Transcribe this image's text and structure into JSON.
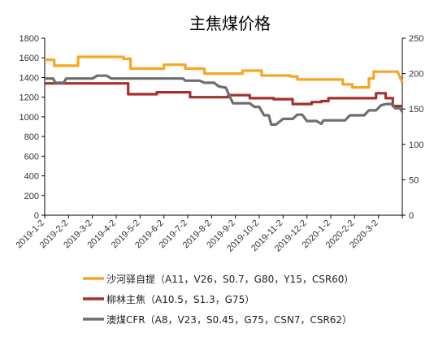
{
  "chart_data": {
    "type": "line",
    "title": "主焦煤价格",
    "x_labels": [
      "2019-1-2",
      "2019-2-2",
      "2019-3-2",
      "2019-4-2",
      "2019-5-2",
      "2019-6-2",
      "2019-7-2",
      "2019-8-2",
      "2019-9-2",
      "2019-10-2",
      "2019-11-2",
      "2019-12-2",
      "2020-1-2",
      "2020-2-2",
      "2020-3-2"
    ],
    "y_left": {
      "min": 0,
      "max": 1800,
      "step": 200,
      "ticks": [
        "0",
        "200",
        "400",
        "600",
        "800",
        "1000",
        "1200",
        "1400",
        "1600",
        "1800"
      ]
    },
    "y_right": {
      "min": 0,
      "max": 250,
      "step": 50,
      "ticks": [
        "0",
        "50",
        "100",
        "150",
        "200",
        "250"
      ]
    },
    "grid": false,
    "legend_position": "bottom",
    "series": [
      {
        "name": "沙河驿自提（A11，V26，S0.7，G80，Y15，CSR60）",
        "axis": "left",
        "color": "#F5A623",
        "points": [
          [
            0,
            1580
          ],
          [
            0.4,
            1580
          ],
          [
            0.4,
            1520
          ],
          [
            1.4,
            1520
          ],
          [
            1.4,
            1610
          ],
          [
            3.3,
            1610
          ],
          [
            3.3,
            1590
          ],
          [
            3.6,
            1590
          ],
          [
            3.6,
            1490
          ],
          [
            5.0,
            1490
          ],
          [
            5.0,
            1530
          ],
          [
            5.9,
            1530
          ],
          [
            5.9,
            1490
          ],
          [
            6.7,
            1490
          ],
          [
            6.7,
            1440
          ],
          [
            8.3,
            1440
          ],
          [
            8.3,
            1470
          ],
          [
            9.1,
            1470
          ],
          [
            9.1,
            1420
          ],
          [
            10.3,
            1420
          ],
          [
            10.3,
            1410
          ],
          [
            10.6,
            1410
          ],
          [
            10.6,
            1380
          ],
          [
            12.5,
            1380
          ],
          [
            12.5,
            1330
          ],
          [
            12.9,
            1330
          ],
          [
            12.9,
            1300
          ],
          [
            13.6,
            1300
          ],
          [
            13.6,
            1390
          ],
          [
            13.8,
            1390
          ],
          [
            13.8,
            1460
          ],
          [
            14.8,
            1460
          ],
          [
            15,
            1350
          ]
        ]
      },
      {
        "name": "柳林主焦（A10.5，S1.3，G75）",
        "axis": "left",
        "color": "#A6302B",
        "points": [
          [
            0,
            1340
          ],
          [
            3.5,
            1340
          ],
          [
            3.5,
            1230
          ],
          [
            4.7,
            1230
          ],
          [
            4.7,
            1250
          ],
          [
            6.1,
            1250
          ],
          [
            6.1,
            1200
          ],
          [
            7.7,
            1200
          ],
          [
            7.7,
            1220
          ],
          [
            8.6,
            1220
          ],
          [
            8.6,
            1190
          ],
          [
            9.6,
            1190
          ],
          [
            9.6,
            1180
          ],
          [
            10.4,
            1180
          ],
          [
            10.4,
            1130
          ],
          [
            11.2,
            1130
          ],
          [
            11.2,
            1150
          ],
          [
            11.6,
            1150
          ],
          [
            11.6,
            1160
          ],
          [
            11.9,
            1160
          ],
          [
            11.9,
            1190
          ],
          [
            13.9,
            1190
          ],
          [
            13.9,
            1240
          ],
          [
            14.3,
            1240
          ],
          [
            14.3,
            1190
          ],
          [
            14.6,
            1190
          ],
          [
            14.6,
            1110
          ],
          [
            15,
            1110
          ]
        ]
      },
      {
        "name": "澳煤CFR（A8，V23，S0.45，G75，CSN7，CSR62）",
        "axis": "right",
        "color": "#6E6E6E",
        "points": [
          [
            0,
            193
          ],
          [
            0.35,
            193
          ],
          [
            0.45,
            187
          ],
          [
            0.8,
            187
          ],
          [
            0.9,
            193
          ],
          [
            2.0,
            193
          ],
          [
            2.2,
            197
          ],
          [
            2.6,
            197
          ],
          [
            2.8,
            193
          ],
          [
            5.8,
            193
          ],
          [
            5.9,
            190
          ],
          [
            6.5,
            190
          ],
          [
            6.7,
            187
          ],
          [
            7.1,
            187
          ],
          [
            7.3,
            182
          ],
          [
            7.6,
            180
          ],
          [
            7.8,
            165
          ],
          [
            7.9,
            158
          ],
          [
            8.6,
            158
          ],
          [
            8.8,
            153
          ],
          [
            9.0,
            153
          ],
          [
            9.2,
            141
          ],
          [
            9.4,
            141
          ],
          [
            9.5,
            128
          ],
          [
            9.7,
            128
          ],
          [
            10.0,
            136
          ],
          [
            10.4,
            136
          ],
          [
            10.6,
            142
          ],
          [
            10.8,
            142
          ],
          [
            11.0,
            133
          ],
          [
            11.4,
            133
          ],
          [
            11.6,
            129
          ],
          [
            11.7,
            134
          ],
          [
            12.6,
            134
          ],
          [
            12.8,
            141
          ],
          [
            13.4,
            141
          ],
          [
            13.6,
            148
          ],
          [
            13.9,
            148
          ],
          [
            14.1,
            155
          ],
          [
            14.3,
            157
          ],
          [
            14.6,
            157
          ],
          [
            14.7,
            151
          ],
          [
            14.9,
            151
          ],
          [
            15,
            146
          ]
        ]
      }
    ]
  }
}
